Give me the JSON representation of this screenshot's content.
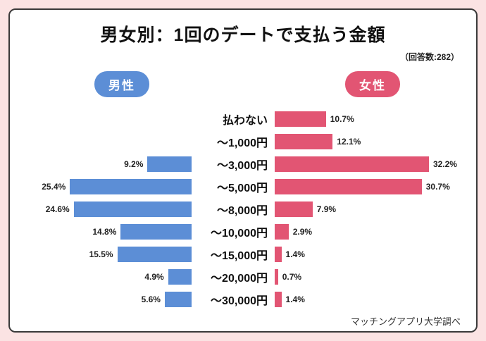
{
  "card": {
    "title": "男女別：1回のデートで支払う金額",
    "respondents": "（回答数:282）",
    "source": "マッチングアプリ大学調べ"
  },
  "legend": {
    "male_label": "男性",
    "female_label": "女性"
  },
  "colors": {
    "male": "#5c8ed6",
    "female": "#e25573",
    "background": "#fbe3e3",
    "card_border": "#3a3a3a"
  },
  "chart_data": {
    "type": "bar",
    "subtype": "butterfly-horizontal",
    "title": "男女別：1回のデートで支払う金額",
    "value_suffix": "%",
    "legend_position": "top",
    "categories": [
      "払わない",
      "～1,000円",
      "～3,000円",
      "～5,000円",
      "～8,000円",
      "～10,000円",
      "～15,000円",
      "～20,000円",
      "～30,000円"
    ],
    "series": [
      {
        "name": "男性",
        "direction": "left",
        "color": "#5c8ed6",
        "values": [
          null,
          null,
          9.2,
          25.4,
          24.6,
          14.8,
          15.5,
          4.9,
          5.6
        ]
      },
      {
        "name": "女性",
        "direction": "right",
        "color": "#e25573",
        "values": [
          10.7,
          12.1,
          32.2,
          30.7,
          7.9,
          2.9,
          1.4,
          0.7,
          1.4
        ]
      }
    ]
  }
}
